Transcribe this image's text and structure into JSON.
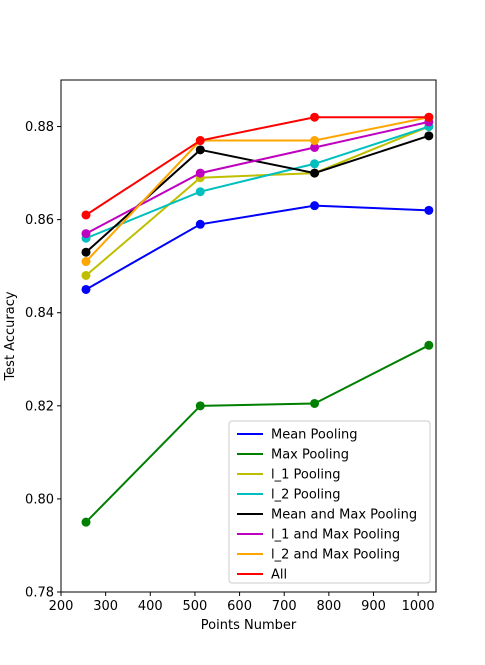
{
  "chart_data": {
    "type": "line",
    "xlabel": "Points Number",
    "ylabel": "Test Accuracy",
    "xlim": [
      200,
      1040
    ],
    "ylim": [
      0.78,
      0.89
    ],
    "x_ticks": [
      200,
      300,
      400,
      500,
      600,
      700,
      800,
      900,
      1000
    ],
    "y_ticks": [
      0.78,
      0.8,
      0.82,
      0.84,
      0.86,
      0.88
    ],
    "y_tick_labels": [
      "0.78",
      "0.80",
      "0.82",
      "0.84",
      "0.86",
      "0.88"
    ],
    "grid": false,
    "legend_position": "bottom-right",
    "x": [
      256,
      512,
      768,
      1024
    ],
    "series": [
      {
        "name": "Mean Pooling",
        "color": "#0000ff",
        "values": [
          0.845,
          0.859,
          0.863,
          0.862
        ]
      },
      {
        "name": "Max Pooling",
        "color": "#008000",
        "values": [
          0.795,
          0.82,
          0.8205,
          0.833
        ]
      },
      {
        "name": "l_1 Pooling",
        "color": "#bfbf00",
        "values": [
          0.848,
          0.869,
          0.87,
          0.88
        ]
      },
      {
        "name": "l_2 Pooling",
        "color": "#00bfbf",
        "values": [
          0.856,
          0.866,
          0.872,
          0.88
        ]
      },
      {
        "name": "Mean and Max Pooling",
        "color": "#000000",
        "values": [
          0.853,
          0.875,
          0.87,
          0.878
        ]
      },
      {
        "name": "l_1 and Max Pooling",
        "color": "#bf00bf",
        "values": [
          0.857,
          0.87,
          0.8755,
          0.881
        ]
      },
      {
        "name": "l_2 and Max Pooling",
        "color": "#ffa500",
        "values": [
          0.851,
          0.877,
          0.877,
          0.882
        ]
      },
      {
        "name": "All",
        "color": "#ff0000",
        "values": [
          0.861,
          0.877,
          0.882,
          0.882
        ]
      }
    ]
  }
}
